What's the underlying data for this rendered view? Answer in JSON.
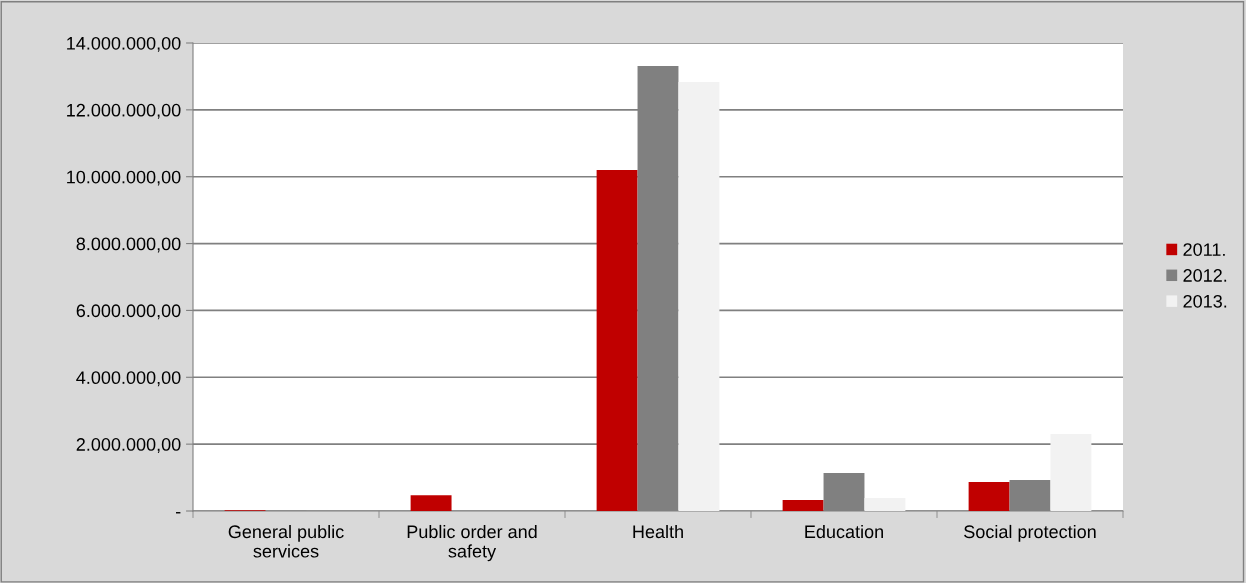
{
  "chart_data": {
    "type": "bar",
    "categories": [
      "General public\nservices",
      "Public order and\nsafety",
      "Health",
      "Education",
      "Social protection"
    ],
    "series": [
      {
        "name": "2011.",
        "color": "#c00000",
        "values": [
          20000,
          470000,
          10200000,
          330000,
          870000
        ]
      },
      {
        "name": "2012.",
        "color": "#808080",
        "values": [
          10000,
          0,
          13310000,
          1140000,
          930000
        ]
      },
      {
        "name": "2013.",
        "color": "#f2f2f2",
        "values": [
          null,
          0,
          12830000,
          390000,
          2300000
        ]
      }
    ],
    "ylim": [
      0,
      14000000
    ],
    "yticks": [
      {
        "value": 0,
        "label": "-"
      },
      {
        "value": 2000000,
        "label": "2.000.000,00"
      },
      {
        "value": 4000000,
        "label": "4.000.000,00"
      },
      {
        "value": 6000000,
        "label": "6.000.000,00"
      },
      {
        "value": 8000000,
        "label": "8.000.000,00"
      },
      {
        "value": 10000000,
        "label": "10.000.000,00"
      },
      {
        "value": 12000000,
        "label": "12.000.000,00"
      },
      {
        "value": 14000000,
        "label": "14.000.000,00"
      }
    ],
    "grid": "y",
    "legend": "right"
  }
}
